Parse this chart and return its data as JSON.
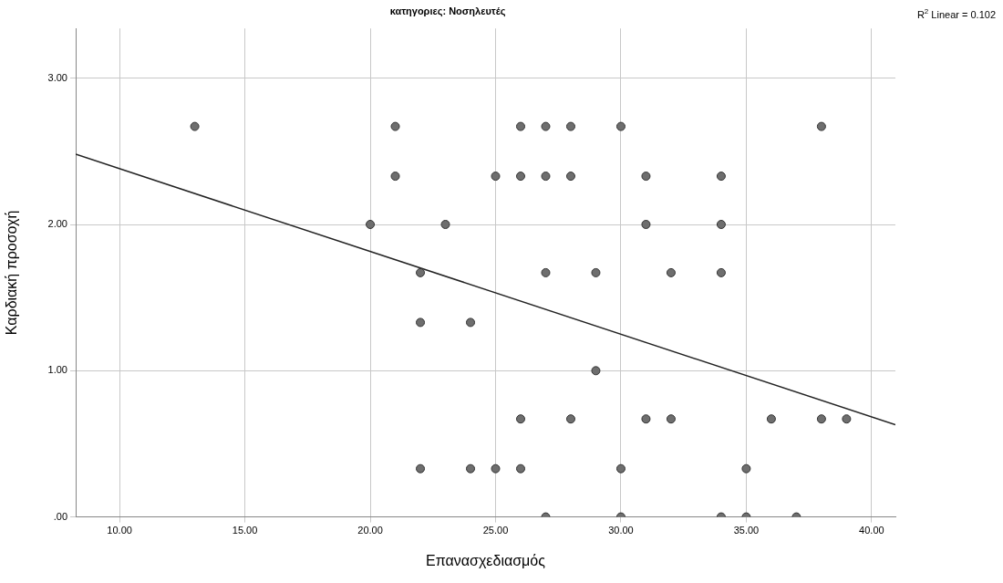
{
  "chart_data": {
    "type": "scatter",
    "title": "κατηγοριες: Νοσηλευτές",
    "xlabel": "Επανασχεδιασμός",
    "ylabel": "Καρδιακή προσοχή",
    "annotations": [
      "R$^{2}$ Linear = 0.102"
    ],
    "series": [
      {
        "color": "#6e6e6e",
        "x": [
          13,
          21,
          26,
          27,
          28,
          30,
          38,
          21,
          25,
          26,
          27,
          28,
          31,
          34,
          20,
          23,
          31,
          34,
          22,
          27,
          29,
          32,
          34,
          22,
          24,
          29,
          26,
          28,
          31,
          32,
          36,
          38,
          39,
          22,
          24,
          25,
          26,
          30,
          35,
          27,
          30,
          34,
          35,
          37
        ],
        "values": [
          2.67,
          2.67,
          2.67,
          2.67,
          2.67,
          2.67,
          2.67,
          2.33,
          2.33,
          2.33,
          2.33,
          2.33,
          2.33,
          2.33,
          2,
          2,
          2,
          2,
          1.67,
          1.67,
          1.67,
          1.67,
          1.67,
          1.33,
          1.33,
          1,
          0.67,
          0.67,
          0.67,
          0.67,
          0.67,
          0.67,
          0.67,
          0.33,
          0.33,
          0.33,
          0.33,
          0.33,
          0.33,
          0,
          0,
          0,
          0,
          0
        ]
      },
      {
        "type": "line",
        "color": "#222222",
        "marker": "none",
        "x": [
          8.25,
          40.95
        ],
        "values": [
          2.48,
          0.63
        ]
      }
    ],
    "xlim": [
      8.25,
      40.95
    ],
    "ylim": [
      0,
      3.34
    ],
    "xticks": [
      {
        "value": 10,
        "label": "10.00"
      },
      {
        "value": 15,
        "label": "15.00"
      },
      {
        "value": 20,
        "label": "20.00"
      },
      {
        "value": 25,
        "label": "25.00"
      },
      {
        "value": 30,
        "label": "30.00"
      },
      {
        "value": 35,
        "label": "35.00"
      },
      {
        "value": 40,
        "label": "40.00"
      }
    ],
    "yticks": [
      {
        "value": 0,
        "label": ".00"
      },
      {
        "value": 1,
        "label": "1.00"
      },
      {
        "value": 2,
        "label": "2.00"
      },
      {
        "value": 3,
        "label": "3.00"
      }
    ],
    "grid": true,
    "legend": false,
    "marker": "circle"
  }
}
